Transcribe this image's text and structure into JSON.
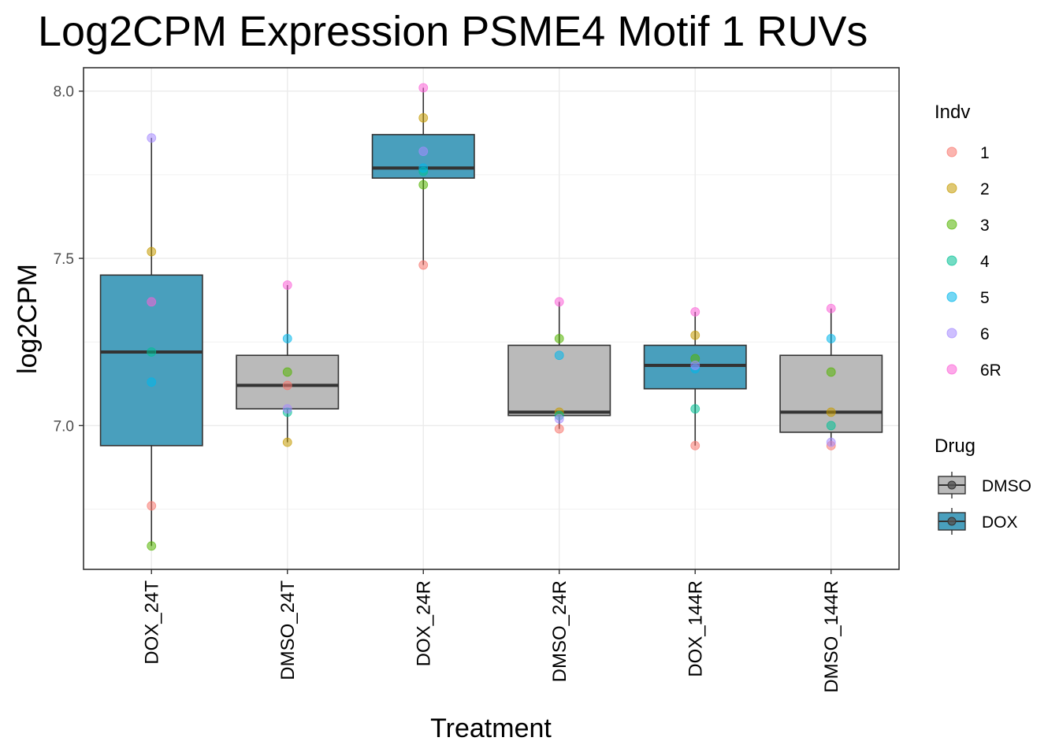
{
  "chart_data": {
    "type": "box",
    "title": "Log2CPM Expression PSME4 Motif 1 RUVs",
    "xlabel": "Treatment",
    "ylabel": "log2CPM",
    "ylim": [
      6.57,
      8.07
    ],
    "yticks": [
      7.0,
      7.5,
      8.0
    ],
    "yticklabels": [
      "7.0",
      "7.5",
      "8.0"
    ],
    "grid": true,
    "categories": [
      "DOX_24T",
      "DMSO_24T",
      "DOX_24R",
      "DMSO_24R",
      "DOX_144R",
      "DMSO_144R"
    ],
    "boxes": [
      {
        "category": "DOX_24T",
        "drug": "DOX",
        "whisker_low": 6.64,
        "q1": 6.94,
        "median": 7.22,
        "q3": 7.45,
        "whisker_high": 7.86
      },
      {
        "category": "DMSO_24T",
        "drug": "DMSO",
        "whisker_low": 6.95,
        "q1": 7.05,
        "median": 7.12,
        "q3": 7.21,
        "whisker_high": 7.42
      },
      {
        "category": "DOX_24R",
        "drug": "DOX",
        "whisker_low": 7.48,
        "q1": 7.74,
        "median": 7.77,
        "q3": 7.87,
        "whisker_high": 8.01
      },
      {
        "category": "DMSO_24R",
        "drug": "DMSO",
        "whisker_low": 6.99,
        "q1": 7.03,
        "median": 7.04,
        "q3": 7.24,
        "whisker_high": 7.37
      },
      {
        "category": "DOX_144R",
        "drug": "DOX",
        "whisker_low": 6.94,
        "q1": 7.11,
        "median": 7.18,
        "q3": 7.24,
        "whisker_high": 7.34
      },
      {
        "category": "DMSO_144R",
        "drug": "DMSO",
        "whisker_low": 6.94,
        "q1": 6.98,
        "median": 7.04,
        "q3": 7.21,
        "whisker_high": 7.35
      }
    ],
    "points": [
      {
        "category": "DOX_24T",
        "indv": "1",
        "y": 6.76
      },
      {
        "category": "DOX_24T",
        "indv": "2",
        "y": 7.52
      },
      {
        "category": "DOX_24T",
        "indv": "3",
        "y": 6.64
      },
      {
        "category": "DOX_24T",
        "indv": "4",
        "y": 7.22
      },
      {
        "category": "DOX_24T",
        "indv": "5",
        "y": 7.13
      },
      {
        "category": "DOX_24T",
        "indv": "6",
        "y": 7.86
      },
      {
        "category": "DOX_24T",
        "indv": "6R",
        "y": 7.37
      },
      {
        "category": "DMSO_24T",
        "indv": "1",
        "y": 7.12
      },
      {
        "category": "DMSO_24T",
        "indv": "2",
        "y": 6.95
      },
      {
        "category": "DMSO_24T",
        "indv": "3",
        "y": 7.16
      },
      {
        "category": "DMSO_24T",
        "indv": "4",
        "y": 7.04
      },
      {
        "category": "DMSO_24T",
        "indv": "5",
        "y": 7.26
      },
      {
        "category": "DMSO_24T",
        "indv": "6",
        "y": 7.05
      },
      {
        "category": "DMSO_24T",
        "indv": "6R",
        "y": 7.42
      },
      {
        "category": "DOX_24R",
        "indv": "1",
        "y": 7.48
      },
      {
        "category": "DOX_24R",
        "indv": "2",
        "y": 7.92
      },
      {
        "category": "DOX_24R",
        "indv": "3",
        "y": 7.72
      },
      {
        "category": "DOX_24R",
        "indv": "4",
        "y": 7.76
      },
      {
        "category": "DOX_24R",
        "indv": "5",
        "y": 7.77
      },
      {
        "category": "DOX_24R",
        "indv": "6",
        "y": 7.82
      },
      {
        "category": "DOX_24R",
        "indv": "6R",
        "y": 8.01
      },
      {
        "category": "DMSO_24R",
        "indv": "1",
        "y": 6.99
      },
      {
        "category": "DMSO_24R",
        "indv": "2",
        "y": 7.04
      },
      {
        "category": "DMSO_24R",
        "indv": "3",
        "y": 7.26
      },
      {
        "category": "DMSO_24R",
        "indv": "4",
        "y": 7.03
      },
      {
        "category": "DMSO_24R",
        "indv": "5",
        "y": 7.21
      },
      {
        "category": "DMSO_24R",
        "indv": "6",
        "y": 7.02
      },
      {
        "category": "DMSO_24R",
        "indv": "6R",
        "y": 7.37
      },
      {
        "category": "DOX_144R",
        "indv": "1",
        "y": 6.94
      },
      {
        "category": "DOX_144R",
        "indv": "2",
        "y": 7.27
      },
      {
        "category": "DOX_144R",
        "indv": "3",
        "y": 7.2
      },
      {
        "category": "DOX_144R",
        "indv": "4",
        "y": 7.05
      },
      {
        "category": "DOX_144R",
        "indv": "5",
        "y": 7.17
      },
      {
        "category": "DOX_144R",
        "indv": "6",
        "y": 7.18
      },
      {
        "category": "DOX_144R",
        "indv": "6R",
        "y": 7.34
      },
      {
        "category": "DMSO_144R",
        "indv": "1",
        "y": 6.94
      },
      {
        "category": "DMSO_144R",
        "indv": "2",
        "y": 7.04
      },
      {
        "category": "DMSO_144R",
        "indv": "3",
        "y": 7.16
      },
      {
        "category": "DMSO_144R",
        "indv": "4",
        "y": 7.0
      },
      {
        "category": "DMSO_144R",
        "indv": "5",
        "y": 7.26
      },
      {
        "category": "DMSO_144R",
        "indv": "6",
        "y": 6.95
      },
      {
        "category": "DMSO_144R",
        "indv": "6R",
        "y": 7.35
      }
    ],
    "legend_indv": {
      "title": "Indv",
      "entries": [
        {
          "label": "1",
          "color": "#F8766D"
        },
        {
          "label": "2",
          "color": "#C49A00"
        },
        {
          "label": "3",
          "color": "#53B400"
        },
        {
          "label": "4",
          "color": "#00C094"
        },
        {
          "label": "5",
          "color": "#00B6EB"
        },
        {
          "label": "6",
          "color": "#A58AFF"
        },
        {
          "label": "6R",
          "color": "#FB61D7"
        }
      ]
    },
    "legend_drug": {
      "title": "Drug",
      "entries": [
        {
          "label": "DMSO",
          "color": "#BABABA"
        },
        {
          "label": "DOX",
          "color": "#499FBD"
        }
      ]
    },
    "legend_placement": "right"
  }
}
